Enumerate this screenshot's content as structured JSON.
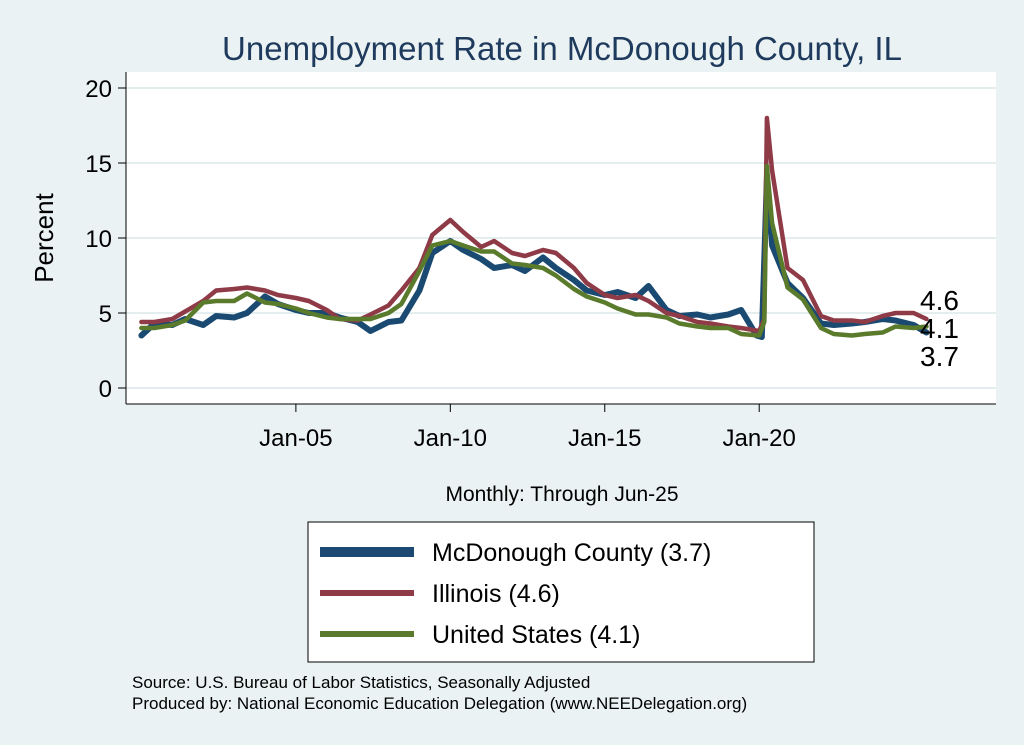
{
  "chart_data": {
    "type": "line",
    "title": "Unemployment Rate in McDonough  County, IL",
    "ylabel": "Percent",
    "xlabel": "Monthly: Through Jun-25",
    "ylim": [
      0,
      21
    ],
    "yticks": [
      0,
      5,
      10,
      15,
      20
    ],
    "xticks": [
      {
        "label": "Jan-05",
        "date": "2005-01"
      },
      {
        "label": "Jan-10",
        "date": "2010-01"
      },
      {
        "label": "Jan-15",
        "date": "2015-01"
      },
      {
        "label": "Jan-20",
        "date": "2020-01"
      }
    ],
    "xrange": [
      "1999-07",
      "2027-09"
    ],
    "grid": true,
    "legend_position": "bottom",
    "series": [
      {
        "name": "McDonough  County (3.7)",
        "color": "#1a4a72",
        "end_label": "3.7",
        "points": [
          [
            "2000-01",
            3.5
          ],
          [
            "2000-06",
            4.3
          ],
          [
            "2001-01",
            4.2
          ],
          [
            "2001-06",
            4.6
          ],
          [
            "2002-01",
            4.2
          ],
          [
            "2002-06",
            4.8
          ],
          [
            "2003-01",
            4.7
          ],
          [
            "2003-06",
            5.0
          ],
          [
            "2004-01",
            6.1
          ],
          [
            "2004-06",
            5.6
          ],
          [
            "2005-01",
            5.2
          ],
          [
            "2005-06",
            5.0
          ],
          [
            "2006-01",
            5.0
          ],
          [
            "2006-06",
            4.7
          ],
          [
            "2007-01",
            4.4
          ],
          [
            "2007-06",
            3.8
          ],
          [
            "2008-01",
            4.4
          ],
          [
            "2008-06",
            4.5
          ],
          [
            "2009-01",
            6.5
          ],
          [
            "2009-06",
            9.0
          ],
          [
            "2010-01",
            9.8
          ],
          [
            "2010-06",
            9.2
          ],
          [
            "2011-01",
            8.6
          ],
          [
            "2011-06",
            8.0
          ],
          [
            "2012-01",
            8.2
          ],
          [
            "2012-06",
            7.8
          ],
          [
            "2013-01",
            8.7
          ],
          [
            "2013-06",
            8.0
          ],
          [
            "2014-01",
            7.2
          ],
          [
            "2014-06",
            6.5
          ],
          [
            "2015-01",
            6.2
          ],
          [
            "2015-06",
            6.4
          ],
          [
            "2016-01",
            6.0
          ],
          [
            "2016-06",
            6.8
          ],
          [
            "2017-01",
            5.2
          ],
          [
            "2017-06",
            4.8
          ],
          [
            "2018-01",
            4.9
          ],
          [
            "2018-06",
            4.7
          ],
          [
            "2019-01",
            4.9
          ],
          [
            "2019-06",
            5.2
          ],
          [
            "2019-12",
            3.5
          ],
          [
            "2020-02",
            3.4
          ],
          [
            "2020-04",
            14.0
          ],
          [
            "2020-06",
            9.5
          ],
          [
            "2020-12",
            7.0
          ],
          [
            "2021-06",
            6.0
          ],
          [
            "2022-01",
            4.3
          ],
          [
            "2022-06",
            4.2
          ],
          [
            "2023-01",
            4.3
          ],
          [
            "2023-06",
            4.4
          ],
          [
            "2024-01",
            4.6
          ],
          [
            "2024-06",
            4.5
          ],
          [
            "2025-01",
            4.2
          ],
          [
            "2025-06",
            3.7
          ]
        ]
      },
      {
        "name": "Illinois (4.6)",
        "color": "#8f3b47",
        "end_label": "4.6",
        "points": [
          [
            "2000-01",
            4.4
          ],
          [
            "2000-06",
            4.4
          ],
          [
            "2001-01",
            4.6
          ],
          [
            "2001-06",
            5.1
          ],
          [
            "2002-01",
            5.8
          ],
          [
            "2002-06",
            6.5
          ],
          [
            "2003-01",
            6.6
          ],
          [
            "2003-06",
            6.7
          ],
          [
            "2004-01",
            6.5
          ],
          [
            "2004-06",
            6.2
          ],
          [
            "2005-01",
            6.0
          ],
          [
            "2005-06",
            5.8
          ],
          [
            "2006-01",
            5.2
          ],
          [
            "2006-06",
            4.6
          ],
          [
            "2007-01",
            4.5
          ],
          [
            "2007-06",
            4.9
          ],
          [
            "2008-01",
            5.5
          ],
          [
            "2008-06",
            6.5
          ],
          [
            "2009-01",
            8.0
          ],
          [
            "2009-06",
            10.2
          ],
          [
            "2010-01",
            11.2
          ],
          [
            "2010-06",
            10.4
          ],
          [
            "2011-01",
            9.4
          ],
          [
            "2011-06",
            9.8
          ],
          [
            "2012-01",
            9.0
          ],
          [
            "2012-06",
            8.8
          ],
          [
            "2013-01",
            9.2
          ],
          [
            "2013-06",
            9.0
          ],
          [
            "2014-01",
            8.0
          ],
          [
            "2014-06",
            7.0
          ],
          [
            "2015-01",
            6.2
          ],
          [
            "2015-06",
            6.0
          ],
          [
            "2016-01",
            6.2
          ],
          [
            "2016-06",
            5.8
          ],
          [
            "2017-01",
            5.0
          ],
          [
            "2017-06",
            4.8
          ],
          [
            "2018-01",
            4.4
          ],
          [
            "2018-06",
            4.3
          ],
          [
            "2019-01",
            4.1
          ],
          [
            "2019-06",
            4.0
          ],
          [
            "2020-01",
            3.8
          ],
          [
            "2020-03",
            4.6
          ],
          [
            "2020-04",
            18.0
          ],
          [
            "2020-06",
            14.5
          ],
          [
            "2020-12",
            8.0
          ],
          [
            "2021-06",
            7.2
          ],
          [
            "2022-01",
            4.8
          ],
          [
            "2022-06",
            4.5
          ],
          [
            "2023-01",
            4.5
          ],
          [
            "2023-06",
            4.4
          ],
          [
            "2024-01",
            4.8
          ],
          [
            "2024-06",
            5.0
          ],
          [
            "2025-01",
            5.0
          ],
          [
            "2025-06",
            4.6
          ]
        ]
      },
      {
        "name": "United States (4.1)",
        "color": "#5a7a2c",
        "end_label": "4.1",
        "points": [
          [
            "2000-01",
            4.0
          ],
          [
            "2000-06",
            4.0
          ],
          [
            "2001-01",
            4.2
          ],
          [
            "2001-06",
            4.5
          ],
          [
            "2002-01",
            5.7
          ],
          [
            "2002-06",
            5.8
          ],
          [
            "2003-01",
            5.8
          ],
          [
            "2003-06",
            6.3
          ],
          [
            "2004-01",
            5.7
          ],
          [
            "2004-06",
            5.6
          ],
          [
            "2005-01",
            5.3
          ],
          [
            "2005-06",
            5.0
          ],
          [
            "2006-01",
            4.7
          ],
          [
            "2006-06",
            4.6
          ],
          [
            "2007-01",
            4.6
          ],
          [
            "2007-06",
            4.6
          ],
          [
            "2008-01",
            5.0
          ],
          [
            "2008-06",
            5.6
          ],
          [
            "2009-01",
            7.8
          ],
          [
            "2009-06",
            9.5
          ],
          [
            "2010-01",
            9.8
          ],
          [
            "2010-06",
            9.5
          ],
          [
            "2011-01",
            9.1
          ],
          [
            "2011-06",
            9.1
          ],
          [
            "2012-01",
            8.3
          ],
          [
            "2012-06",
            8.2
          ],
          [
            "2013-01",
            8.0
          ],
          [
            "2013-06",
            7.5
          ],
          [
            "2014-01",
            6.6
          ],
          [
            "2014-06",
            6.1
          ],
          [
            "2015-01",
            5.7
          ],
          [
            "2015-06",
            5.3
          ],
          [
            "2016-01",
            4.9
          ],
          [
            "2016-06",
            4.9
          ],
          [
            "2017-01",
            4.7
          ],
          [
            "2017-06",
            4.3
          ],
          [
            "2018-01",
            4.1
          ],
          [
            "2018-06",
            4.0
          ],
          [
            "2019-01",
            4.0
          ],
          [
            "2019-06",
            3.6
          ],
          [
            "2020-01",
            3.5
          ],
          [
            "2020-03",
            4.4
          ],
          [
            "2020-04",
            14.8
          ],
          [
            "2020-06",
            11.0
          ],
          [
            "2020-12",
            6.7
          ],
          [
            "2021-06",
            5.9
          ],
          [
            "2022-01",
            4.0
          ],
          [
            "2022-06",
            3.6
          ],
          [
            "2023-01",
            3.5
          ],
          [
            "2023-06",
            3.6
          ],
          [
            "2024-01",
            3.7
          ],
          [
            "2024-06",
            4.1
          ],
          [
            "2025-01",
            4.0
          ],
          [
            "2025-06",
            4.1
          ]
        ]
      }
    ]
  },
  "source": {
    "line1": "Source: U.S. Bureau of Labor Statistics, Seasonally Adjusted",
    "line2": "Produced by: National Economic Education Delegation (www.NEEDelegation.org)"
  }
}
